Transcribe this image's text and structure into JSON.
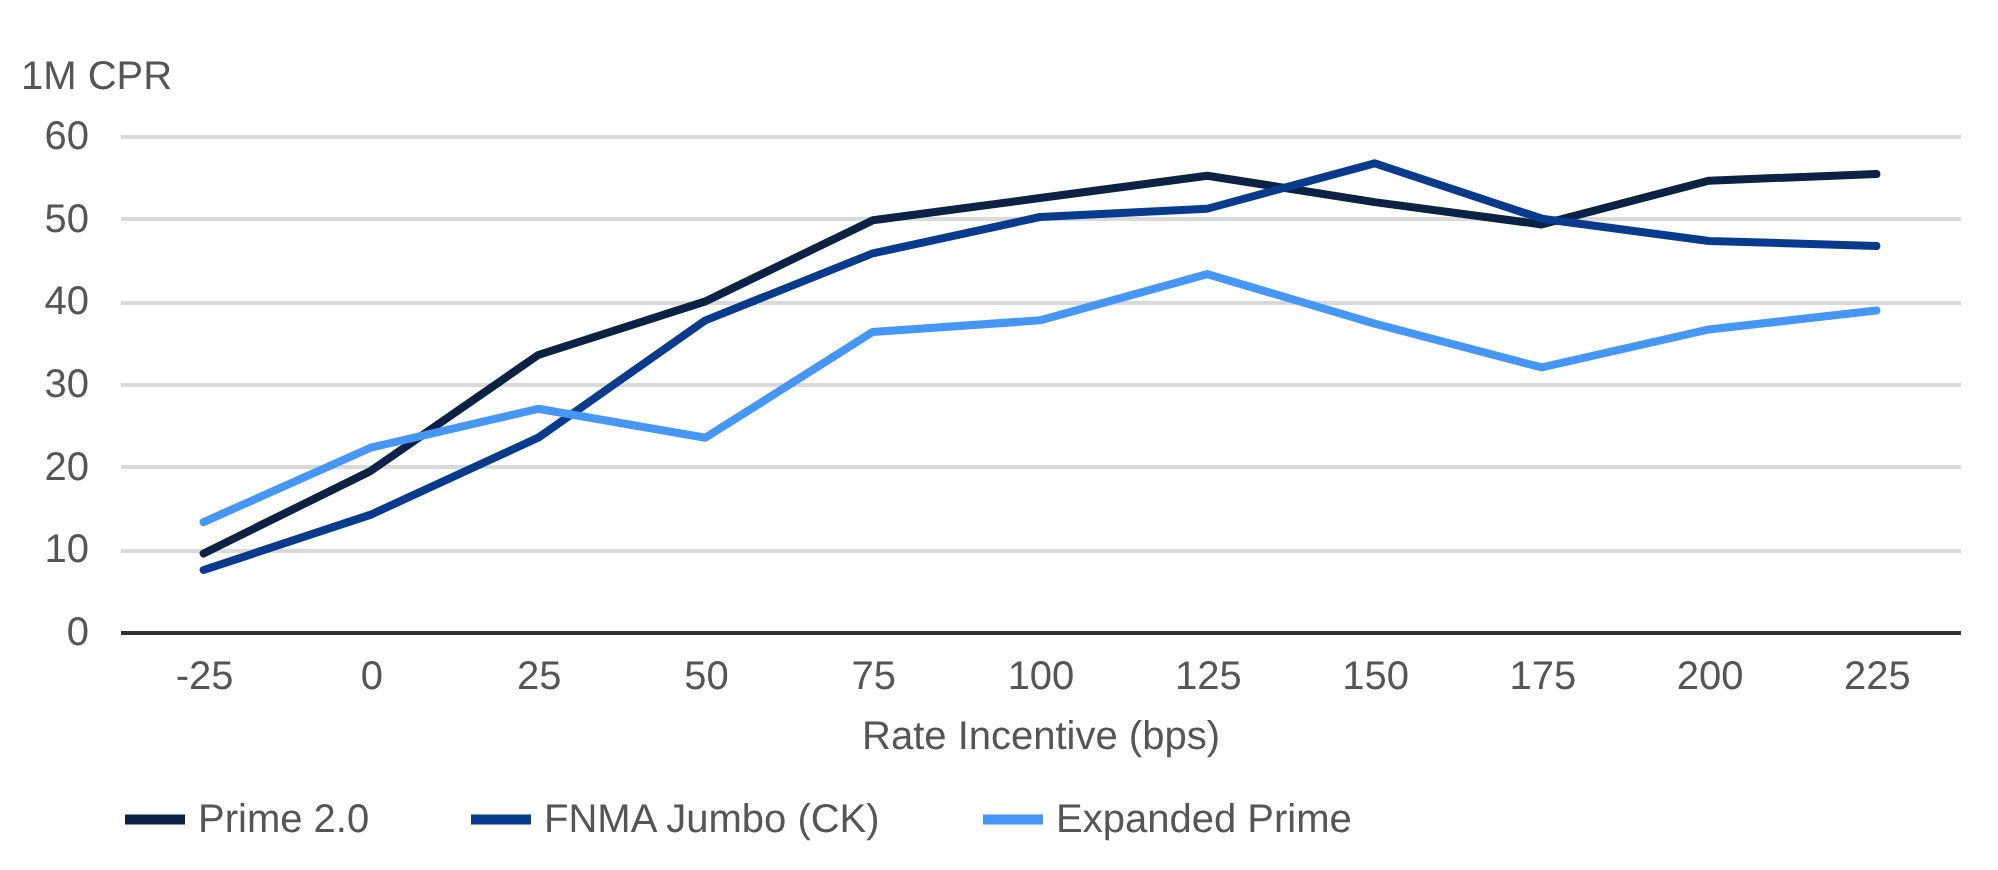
{
  "chart_data": {
    "type": "line",
    "ylabel": "1M CPR",
    "xlabel": "Rate Incentive (bps)",
    "categories": [
      "-25",
      "0",
      "25",
      "50",
      "75",
      "100",
      "125",
      "150",
      "175",
      "200",
      "225"
    ],
    "series": [
      {
        "name": "Prime 2.0",
        "color": "#0b2244",
        "values": [
          9.5,
          19.5,
          33.5,
          40,
          49.8,
          52.5,
          55.2,
          52,
          49.3,
          54.6,
          55.4
        ]
      },
      {
        "name": "FNMA Jumbo (CK)",
        "color": "#083b8e",
        "values": [
          7.5,
          14.2,
          23.5,
          37.7,
          45.8,
          50.2,
          51.2,
          56.7,
          50,
          47.3,
          46.7
        ]
      },
      {
        "name": "Expanded Prime",
        "color": "#4596f5",
        "values": [
          13.3,
          22.3,
          27,
          23.5,
          36.3,
          37.7,
          43.3,
          37.3,
          32,
          36.6,
          38.9
        ]
      }
    ],
    "ylim": [
      0,
      60
    ],
    "yticks": [
      0,
      10,
      20,
      30,
      40,
      50,
      60
    ],
    "grid": "y",
    "legend": "bottom",
    "marker": "none",
    "line_style": "solid"
  }
}
